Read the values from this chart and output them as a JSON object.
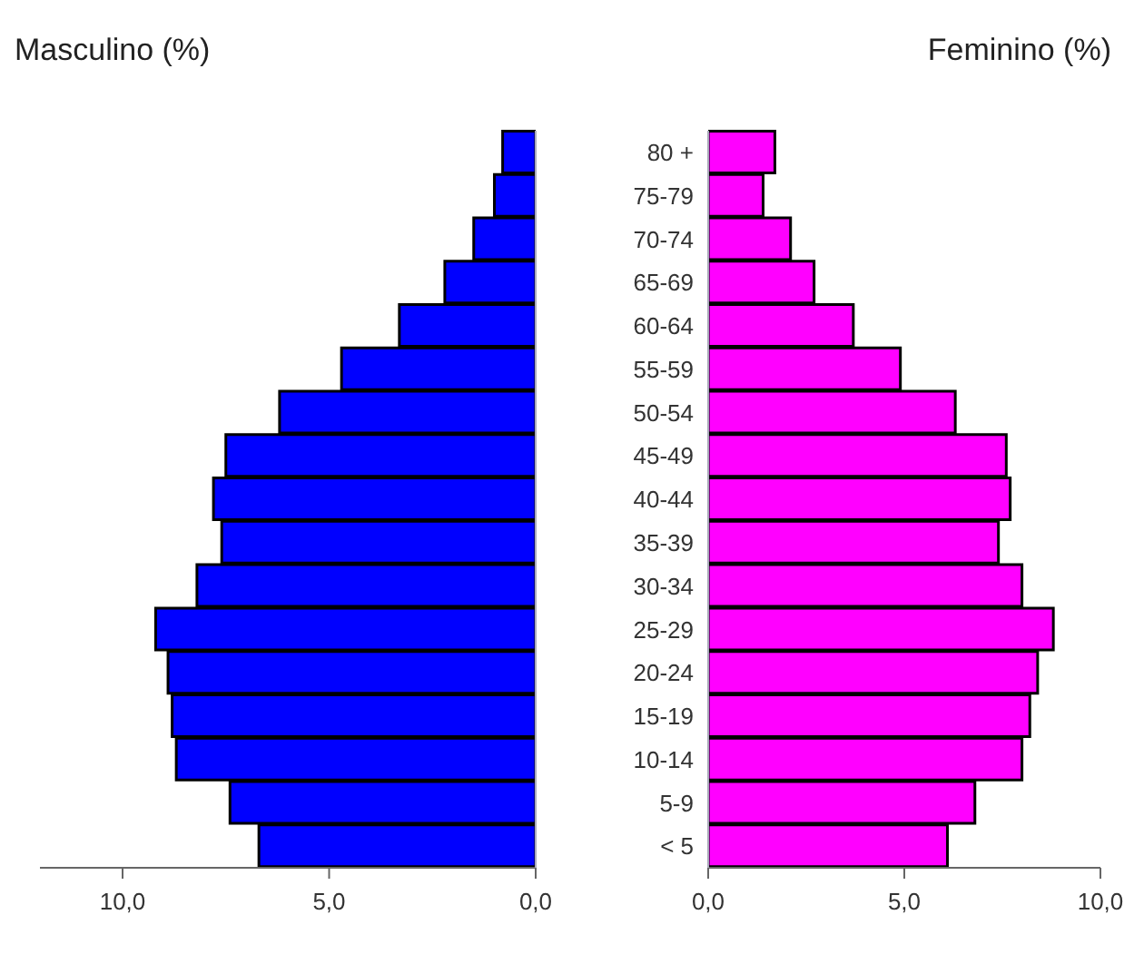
{
  "chart_data": [
    {
      "type": "bar",
      "orientation": "horizontal",
      "title": "Masculino (%)",
      "categories": [
        null,
        null,
        null,
        null,
        null,
        null,
        null,
        null,
        null,
        null,
        null,
        null,
        null,
        null,
        null,
        null,
        null
      ],
      "series": [
        {
          "color": "#0000ff",
          "values": [
            0.8,
            1.0,
            1.5,
            2.2,
            3.3,
            4.7,
            6.2,
            7.5,
            7.8,
            7.6,
            8.2,
            9.2,
            8.9,
            8.8,
            8.7,
            7.4,
            6.7
          ]
        }
      ],
      "xlim": [
        12,
        0
      ],
      "xticks": [
        {
          "value": 10,
          "label": "10,0"
        },
        {
          "value": 5,
          "label": "5,0"
        },
        {
          "value": 0,
          "label": "0,0"
        }
      ],
      "tick_labels": "x"
    },
    {
      "type": "bar",
      "orientation": "horizontal",
      "title": "Feminino (%)",
      "categories": [
        "80 +",
        "75-79",
        "70-74",
        "65-69",
        "60-64",
        "55-59",
        "50-54",
        "45-49",
        "40-44",
        "35-39",
        "30-34",
        "25-29",
        "20-24",
        "15-19",
        "10-14",
        "5-9",
        "< 5"
      ],
      "series": [
        {
          "color": "#ff00ff",
          "values": [
            1.7,
            1.4,
            2.1,
            2.7,
            3.7,
            4.9,
            6.3,
            7.6,
            7.7,
            7.4,
            8.0,
            8.8,
            8.4,
            8.2,
            8.0,
            6.8,
            6.1
          ]
        }
      ],
      "xlim": [
        0,
        10
      ],
      "xticks": [
        {
          "value": 0,
          "label": "0,0"
        },
        {
          "value": 5,
          "label": "5,0"
        },
        {
          "value": 10,
          "label": "10,0"
        }
      ]
    }
  ]
}
